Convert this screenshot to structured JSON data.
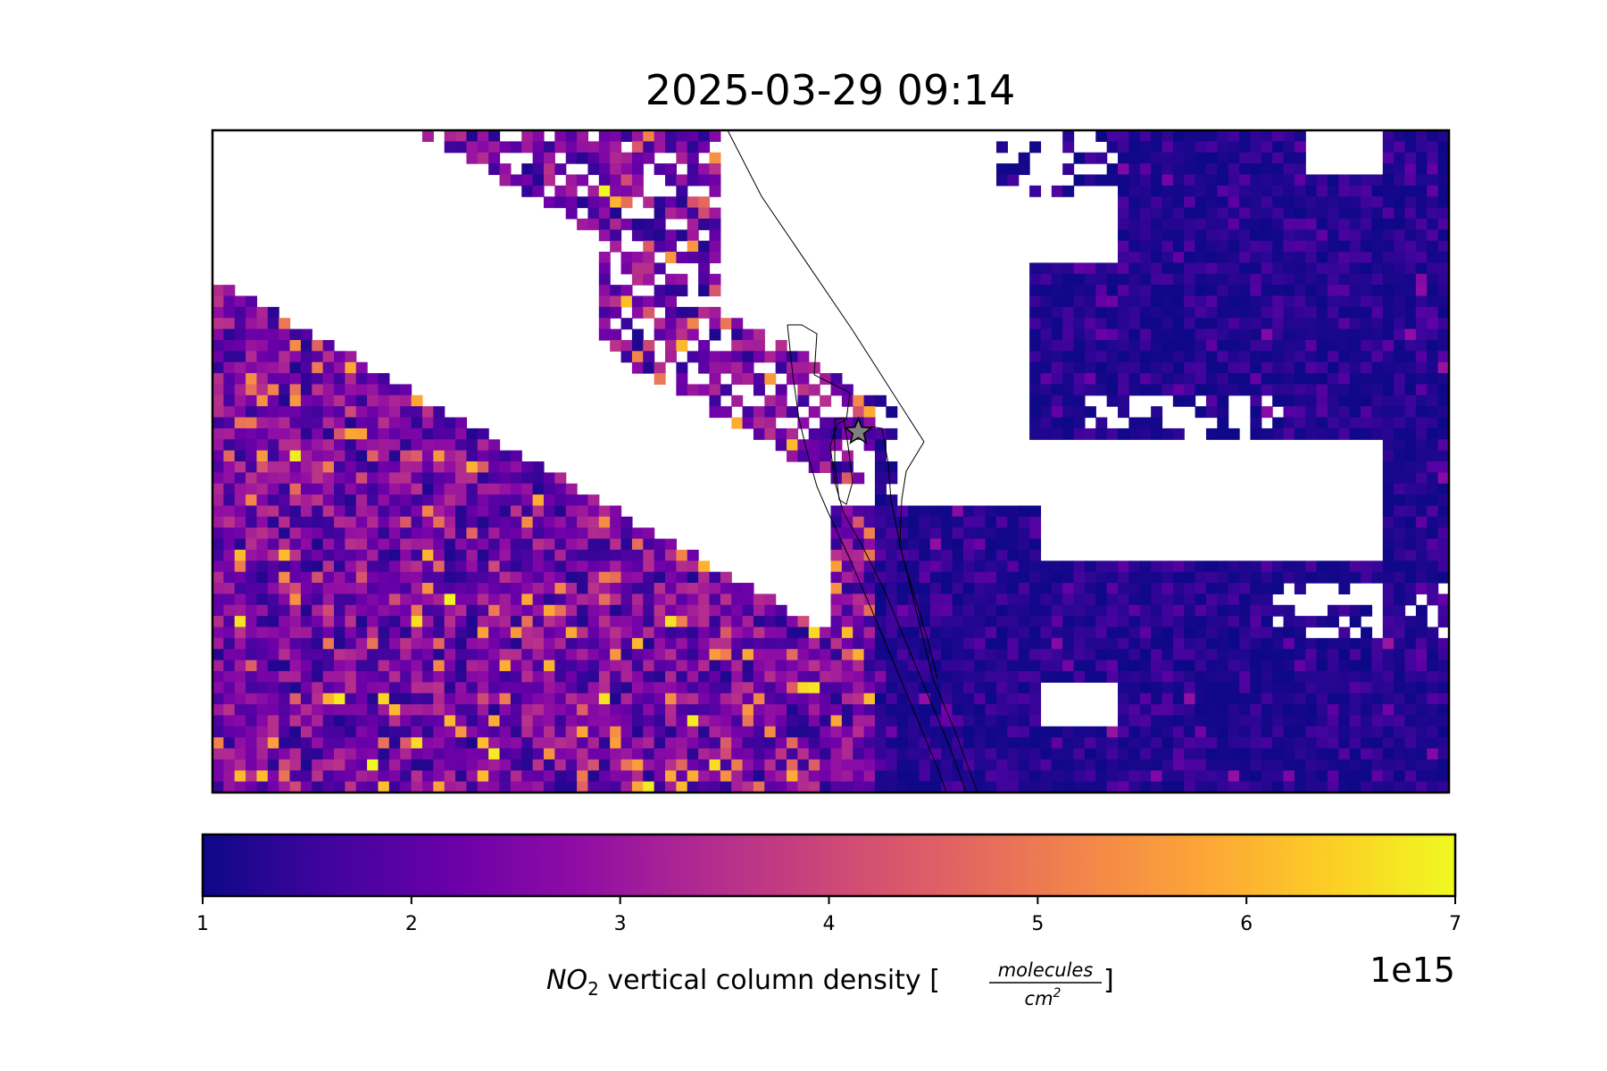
{
  "chart_data": {
    "type": "heatmap",
    "title": "2025-03-29 09:14",
    "colormap": "plasma",
    "missing_color": "#ffffff",
    "colorbar": {
      "label_prefix": "NO",
      "label_subscript": "2",
      "label_rest": " vertical column density [",
      "unit_numerator": "molecules",
      "unit_denominator": "cm",
      "unit_denominator_power": "2",
      "label_close": "]",
      "min": 1,
      "max": 7,
      "ticks": [
        "1",
        "2",
        "3",
        "4",
        "5",
        "6",
        "7"
      ],
      "offset_text": "1e15"
    },
    "grid": {
      "columns": 112,
      "rows": 60
    },
    "value_units": "1e15 molecules/cm2",
    "site_marker": {
      "symbol": "star",
      "color": "#808080",
      "column": 58.5,
      "row": 27
    },
    "value_summary": {
      "left_region_typical": [
        1.5,
        4.0
      ],
      "right_region_typical": [
        1.0,
        1.6
      ],
      "hotspot_max": 7.0
    }
  },
  "colors": {
    "outline": "#000000",
    "star_fill": "#808080"
  }
}
